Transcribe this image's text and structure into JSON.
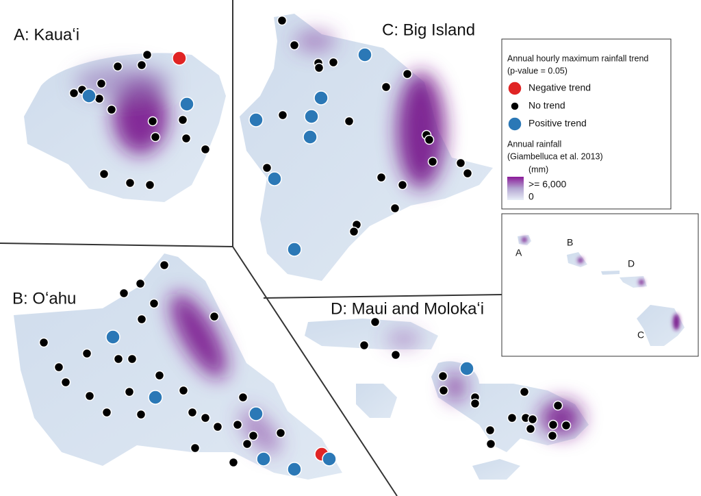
{
  "panels": [
    {
      "label": "A: Kauaʻi"
    },
    {
      "label": "B: Oʻahu"
    },
    {
      "label": "C: Big Island"
    },
    {
      "label": "D: Maui and Molokaʻi"
    }
  ],
  "legend": {
    "trend_title": [
      "Annual hourly maximum rainfall trend",
      "(p-value = 0.05)"
    ],
    "items": [
      {
        "label": "Negative trend",
        "color": "#e02424"
      },
      {
        "label": "No trend",
        "color": "#000000"
      },
      {
        "label": "Positive trend",
        "color": "#2b78b6"
      }
    ],
    "rainfall_title": [
      "Annual rainfall",
      "(Giambelluca et al. 2013)"
    ],
    "unit": "(mm)",
    "scale_max": ">= 6,000",
    "scale_min": "0"
  },
  "inset": {
    "labels": [
      "A",
      "B",
      "D",
      "C"
    ]
  }
}
